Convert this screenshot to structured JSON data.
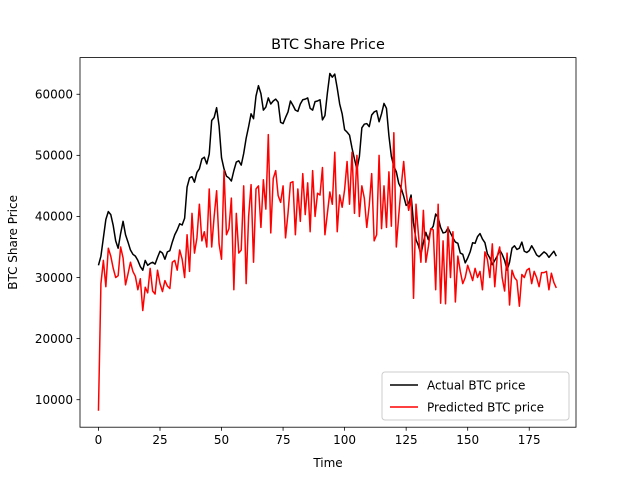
{
  "chart_data": {
    "type": "line",
    "title": "BTC Share Price",
    "xlabel": "Time",
    "ylabel": "BTC Share Price",
    "xlim": [
      -7.5,
      194
    ],
    "ylim": [
      5500,
      66000
    ],
    "xticks": [
      0,
      25,
      50,
      75,
      100,
      125,
      150,
      175
    ],
    "xtick_labels": [
      "0",
      "25",
      "50",
      "75",
      "100",
      "125",
      "150",
      "175"
    ],
    "yticks": [
      10000,
      20000,
      30000,
      40000,
      50000,
      60000
    ],
    "ytick_labels": [
      "10000",
      "20000",
      "30000",
      "40000",
      "50000",
      "60000"
    ],
    "grid": false,
    "legend_position": "lower-right",
    "series": [
      {
        "name": "Actual BTC price",
        "color": "#000000",
        "x": [
          0,
          1,
          2,
          3,
          4,
          5,
          6,
          7,
          8,
          9,
          10,
          11,
          12,
          13,
          14,
          15,
          16,
          17,
          18,
          19,
          20,
          21,
          22,
          23,
          24,
          25,
          26,
          27,
          28,
          29,
          30,
          31,
          32,
          33,
          34,
          35,
          36,
          37,
          38,
          39,
          40,
          41,
          42,
          43,
          44,
          45,
          46,
          47,
          48,
          49,
          50,
          51,
          52,
          53,
          54,
          55,
          56,
          57,
          58,
          59,
          60,
          61,
          62,
          63,
          64,
          65,
          66,
          67,
          68,
          69,
          70,
          71,
          72,
          73,
          74,
          75,
          76,
          77,
          78,
          79,
          80,
          81,
          82,
          83,
          84,
          85,
          86,
          87,
          88,
          89,
          90,
          91,
          92,
          93,
          94,
          95,
          96,
          97,
          98,
          99,
          100,
          101,
          102,
          103,
          104,
          105,
          106,
          107,
          108,
          109,
          110,
          111,
          112,
          113,
          114,
          115,
          116,
          117,
          118,
          119,
          120,
          121,
          122,
          123,
          124,
          125,
          126,
          127,
          128,
          129,
          130,
          131,
          132,
          133,
          134,
          135,
          136,
          137,
          138,
          139,
          140,
          141,
          142,
          143,
          144,
          145,
          146,
          147,
          148,
          149,
          150,
          151,
          152,
          153,
          154,
          155,
          156,
          157,
          158,
          159,
          160,
          161,
          162,
          163,
          164,
          165,
          166,
          167,
          168,
          169,
          170,
          171,
          172,
          173,
          174,
          175,
          176,
          177,
          178,
          179,
          180,
          181,
          182,
          183,
          184,
          185,
          186
        ],
        "values": [
          32000,
          33500,
          36500,
          39500,
          40800,
          40300,
          38500,
          36000,
          34800,
          37200,
          39200,
          37000,
          35800,
          34500,
          33800,
          33500,
          32800,
          31800,
          31200,
          32800,
          32000,
          32300,
          32500,
          32200,
          33300,
          34300,
          34000,
          33000,
          34200,
          34400,
          35800,
          37000,
          37800,
          38800,
          38600,
          39700,
          44800,
          46300,
          46500,
          45600,
          47200,
          47800,
          49400,
          49700,
          48600,
          50200,
          55700,
          56200,
          57800,
          54800,
          49600,
          47800,
          46600,
          46300,
          45800,
          47500,
          48900,
          49100,
          48400,
          50300,
          52800,
          54700,
          56800,
          56000,
          59700,
          61400,
          60100,
          57400,
          57900,
          59400,
          58400,
          58900,
          59200,
          58700,
          55400,
          55200,
          56200,
          57100,
          58900,
          58200,
          57400,
          57200,
          58400,
          59100,
          59200,
          59400,
          57700,
          57400,
          58800,
          58900,
          59100,
          55800,
          56500,
          60200,
          63400,
          62800,
          63300,
          61000,
          58400,
          56800,
          54200,
          53800,
          53300,
          51200,
          49400,
          47700,
          49800,
          54500,
          55100,
          55200,
          54700,
          56600,
          57100,
          57300,
          55500,
          56800,
          58500,
          57700,
          53200,
          49800,
          48200,
          47300,
          45400,
          44600,
          43300,
          41800,
          42100,
          43500,
          38900,
          36200,
          35200,
          33800,
          35700,
          37400,
          36200,
          37800,
          38400,
          40400,
          39800,
          38200,
          37300,
          37400,
          38100,
          37300,
          36500,
          35800,
          35600,
          34000,
          33800,
          32400,
          33200,
          34200,
          35700,
          35600,
          36700,
          37200,
          36300,
          35700,
          33900,
          33200,
          32100,
          32800,
          33500,
          34500,
          33800,
          32800,
          31200,
          32500,
          34800,
          35200,
          34600,
          34800,
          35800,
          34300,
          34100,
          34400,
          35200,
          34500,
          33700,
          33400,
          33800,
          34200,
          33900,
          33300,
          33800,
          34300,
          33500
        ]
      },
      {
        "name": "Predicted BTC price",
        "color": "#ff0000",
        "x": [
          0,
          1,
          2,
          3,
          4,
          5,
          6,
          7,
          8,
          9,
          10,
          11,
          12,
          13,
          14,
          15,
          16,
          17,
          18,
          19,
          20,
          21,
          22,
          23,
          24,
          25,
          26,
          27,
          28,
          29,
          30,
          31,
          32,
          33,
          34,
          35,
          36,
          37,
          38,
          39,
          40,
          41,
          42,
          43,
          44,
          45,
          46,
          47,
          48,
          49,
          50,
          51,
          52,
          53,
          54,
          55,
          56,
          57,
          58,
          59,
          60,
          61,
          62,
          63,
          64,
          65,
          66,
          67,
          68,
          69,
          70,
          71,
          72,
          73,
          74,
          75,
          76,
          77,
          78,
          79,
          80,
          81,
          82,
          83,
          84,
          85,
          86,
          87,
          88,
          89,
          90,
          91,
          92,
          93,
          94,
          95,
          96,
          97,
          98,
          99,
          100,
          101,
          102,
          103,
          104,
          105,
          106,
          107,
          108,
          109,
          110,
          111,
          112,
          113,
          114,
          115,
          116,
          117,
          118,
          119,
          120,
          121,
          122,
          123,
          124,
          125,
          126,
          127,
          128,
          129,
          130,
          131,
          132,
          133,
          134,
          135,
          136,
          137,
          138,
          139,
          140,
          141,
          142,
          143,
          144,
          145,
          146,
          147,
          148,
          149,
          150,
          151,
          152,
          153,
          154,
          155,
          156,
          157,
          158,
          159,
          160,
          161,
          162,
          163,
          164,
          165,
          166,
          167,
          168,
          169,
          170,
          171,
          172,
          173,
          174,
          175,
          176,
          177,
          178,
          179,
          180,
          181,
          182,
          183,
          184,
          185,
          186
        ],
        "values": [
          8200,
          29000,
          32800,
          28500,
          34800,
          33500,
          31500,
          30000,
          30300,
          35000,
          33200,
          28800,
          30600,
          32500,
          31000,
          30200,
          28000,
          29800,
          24600,
          28400,
          27500,
          31500,
          27800,
          27300,
          31200,
          29000,
          27700,
          29500,
          28600,
          28200,
          32500,
          32800,
          31200,
          34500,
          33000,
          30000,
          37000,
          31000,
          40500,
          34000,
          36500,
          42000,
          36000,
          37500,
          35000,
          44500,
          35000,
          40000,
          44200,
          35500,
          33000,
          47500,
          37000,
          38000,
          43000,
          28000,
          40500,
          34000,
          34500,
          45000,
          29000,
          40000,
          45200,
          32500,
          44500,
          45000,
          38200,
          46000,
          41200,
          53400,
          37300,
          46200,
          47500,
          43400,
          42300,
          45000,
          36500,
          40500,
          45500,
          45700,
          37000,
          44500,
          39200,
          47000,
          40300,
          45500,
          37500,
          47500,
          40000,
          43800,
          43500,
          48000,
          37000,
          40500,
          44000,
          42000,
          50500,
          37500,
          43500,
          41500,
          44400,
          49000,
          42000,
          50500,
          40500,
          50000,
          40000,
          45000,
          43000,
          38200,
          41800,
          47000,
          36000,
          37000,
          50000,
          38000,
          45000,
          38200,
          47300,
          38400,
          53700,
          35000,
          40200,
          45000,
          49000,
          44000,
          41000,
          43000,
          26600,
          42000,
          37000,
          32500,
          41000,
          32500,
          35000,
          38000,
          37800,
          28000,
          42000,
          25800,
          36000,
          25700,
          38300,
          30000,
          37500,
          26000,
          33500,
          31000,
          29000,
          30000,
          32000,
          30800,
          29500,
          31500,
          30000,
          31000,
          28000,
          34200,
          33000,
          30000,
          35500,
          28500,
          33500,
          35000,
          30000,
          27800,
          34000,
          25500,
          31200,
          30000,
          29500,
          25300,
          30500,
          30000,
          31200,
          31500,
          29000,
          31000,
          30000,
          28500,
          30800,
          30800,
          31000,
          28000,
          30700,
          29200,
          28300
        ]
      }
    ]
  }
}
